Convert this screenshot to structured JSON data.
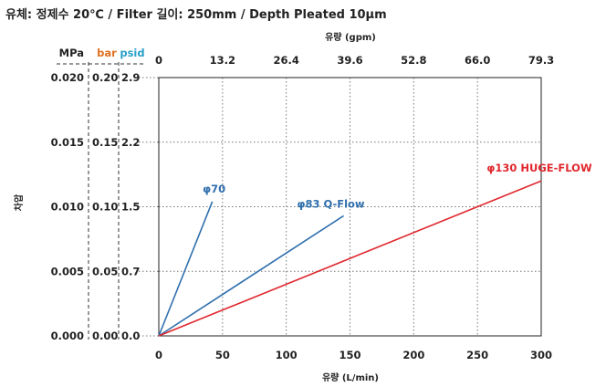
{
  "header": {
    "condition": "유체: 정제수 20℃  /  Filter 길이: 250mm / Depth Pleated 10μm"
  },
  "colors": {
    "mpa": "#222222",
    "bar": "#e07020",
    "psid": "#2aa0c8",
    "phi70": "#2f6fad",
    "phi83": "#2f6fad",
    "huge": "#e0282e",
    "grid": "#777777",
    "axis": "#222222"
  },
  "chart_data": {
    "type": "line",
    "xlabel": "유량 (L/min)",
    "x2label": "유량 (gpm)",
    "ylabel": "차압",
    "xlim": [
      0,
      300
    ],
    "ylim": [
      0,
      0.02
    ],
    "x_ticks": [
      "0",
      "50",
      "100",
      "150",
      "200",
      "250",
      "300"
    ],
    "x_tick_values": [
      0,
      50,
      100,
      150,
      200,
      250,
      300
    ],
    "x2_ticks": [
      "0",
      "13.2",
      "26.4",
      "39.6",
      "52.8",
      "66.0",
      "79.3"
    ],
    "y_units": [
      "MPa",
      "bar",
      "psid"
    ],
    "y_ticks_mpa": [
      "0.000",
      "0.005",
      "0.010",
      "0.015",
      "0.020"
    ],
    "y_ticks_bar": [
      "0.00",
      "0.05",
      "0.10",
      "0.15",
      "0.20"
    ],
    "y_ticks_psid": [
      "0.0",
      "0.7",
      "1.5",
      "2.2",
      "2.9"
    ],
    "y_tick_values": [
      0,
      0.005,
      0.01,
      0.015,
      0.02
    ],
    "grid": true,
    "series": [
      {
        "name": "φ70",
        "points": [
          [
            0,
            0
          ],
          [
            42,
            0.0104
          ]
        ]
      },
      {
        "name": "φ83 Q-Flow",
        "points": [
          [
            0,
            0
          ],
          [
            145,
            0.0093
          ]
        ]
      },
      {
        "name": "φ130 HUGE-FLOW",
        "points": [
          [
            0,
            0
          ],
          [
            300,
            0.012
          ]
        ]
      }
    ]
  }
}
